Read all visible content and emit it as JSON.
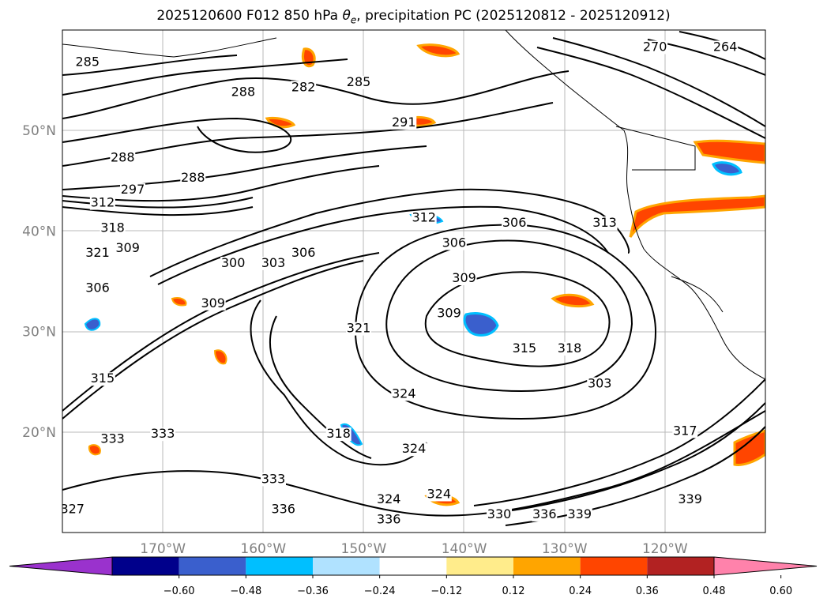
{
  "title": "2025120600 F012 850 hPa θe, precipitation PC (2025120812 - 2025120912)",
  "title_parts": {
    "prefix": "2025120600 F012 850 hPa ",
    "symbol": "θ",
    "subscript": "e",
    "suffix": ", precipitation PC (2025120812 - 2025120912)"
  },
  "map": {
    "lon_range": [
      -180,
      -110
    ],
    "lat_range": [
      10,
      60
    ],
    "grid_lines": true,
    "lat_ticks": [
      {
        "lat": 50,
        "label": "50°N"
      },
      {
        "lat": 40,
        "label": "40°N"
      },
      {
        "lat": 30,
        "label": "30°N"
      },
      {
        "lat": 20,
        "label": "20°N"
      }
    ],
    "lon_ticks": [
      {
        "lon": -170,
        "label": "170°W"
      },
      {
        "lon": -160,
        "label": "160°W"
      },
      {
        "lon": -150,
        "label": "150°W"
      },
      {
        "lon": -140,
        "label": "140°W"
      },
      {
        "lon": -130,
        "label": "130°W"
      },
      {
        "lon": -120,
        "label": "120°W"
      }
    ]
  },
  "contour_labels": [
    {
      "text": "285",
      "lon": -177.5,
      "lat": 56.5
    },
    {
      "text": "282",
      "lon": -156,
      "lat": 54
    },
    {
      "text": "285",
      "lon": -150.5,
      "lat": 54.5
    },
    {
      "text": "288",
      "lon": -162,
      "lat": 53.5
    },
    {
      "text": "291",
      "lon": -146,
      "lat": 50.5
    },
    {
      "text": "270",
      "lon": -121,
      "lat": 58
    },
    {
      "text": "264",
      "lon": -114,
      "lat": 58
    },
    {
      "text": "288",
      "lon": -174,
      "lat": 47
    },
    {
      "text": "288",
      "lon": -167,
      "lat": 45
    },
    {
      "text": "297",
      "lon": -173,
      "lat": 43.8
    },
    {
      "text": "312",
      "lon": -176,
      "lat": 42.5
    },
    {
      "text": "318",
      "lon": -175,
      "lat": 40
    },
    {
      "text": "321",
      "lon": -176.5,
      "lat": 37.5
    },
    {
      "text": "309",
      "lon": -173.5,
      "lat": 38
    },
    {
      "text": "306",
      "lon": -176.5,
      "lat": 34
    },
    {
      "text": "312",
      "lon": -144,
      "lat": 41
    },
    {
      "text": "306",
      "lon": -135,
      "lat": 40.5
    },
    {
      "text": "313",
      "lon": -126,
      "lat": 40.5
    },
    {
      "text": "306",
      "lon": -141,
      "lat": 38.5
    },
    {
      "text": "300",
      "lon": -163,
      "lat": 36.5
    },
    {
      "text": "303",
      "lon": -159,
      "lat": 36.5
    },
    {
      "text": "306",
      "lon": -156,
      "lat": 37.5
    },
    {
      "text": "309",
      "lon": -140,
      "lat": 35
    },
    {
      "text": "309",
      "lon": -165,
      "lat": 32.5
    },
    {
      "text": "309",
      "lon": -141.5,
      "lat": 31.5
    },
    {
      "text": "321",
      "lon": -150.5,
      "lat": 30
    },
    {
      "text": "315",
      "lon": -134,
      "lat": 28
    },
    {
      "text": "318",
      "lon": -129.5,
      "lat": 28
    },
    {
      "text": "315",
      "lon": -176,
      "lat": 25
    },
    {
      "text": "303",
      "lon": -126.5,
      "lat": 24.5
    },
    {
      "text": "324",
      "lon": -146,
      "lat": 23.5
    },
    {
      "text": "333",
      "lon": -175,
      "lat": 19
    },
    {
      "text": "333",
      "lon": -170,
      "lat": 19.5
    },
    {
      "text": "318",
      "lon": -152.5,
      "lat": 19.5
    },
    {
      "text": "324",
      "lon": -145,
      "lat": 18
    },
    {
      "text": "317",
      "lon": -118,
      "lat": 19.8
    },
    {
      "text": "333",
      "lon": -159,
      "lat": 15
    },
    {
      "text": "336",
      "lon": -158,
      "lat": 12
    },
    {
      "text": "324",
      "lon": -147.5,
      "lat": 13
    },
    {
      "text": "324",
      "lon": -142.5,
      "lat": 13.5
    },
    {
      "text": "336",
      "lon": -147.5,
      "lat": 11
    },
    {
      "text": "330",
      "lon": -136.5,
      "lat": 11.5
    },
    {
      "text": "336",
      "lon": -132,
      "lat": 11.5
    },
    {
      "text": "339",
      "lon": -128.5,
      "lat": 11.5
    },
    {
      "text": "339",
      "lon": -117.5,
      "lat": 13
    },
    {
      "text": "327",
      "lon": -179,
      "lat": 12
    }
  ],
  "colorbar": {
    "ticks": [
      "−0.60",
      "−0.48",
      "−0.36",
      "−0.24",
      "−0.12",
      "0.12",
      "0.24",
      "0.36",
      "0.48",
      "0.60"
    ],
    "colors": [
      "#9a32cd",
      "#00008b",
      "#3a5fcd",
      "#00bfff",
      "#b0e2ff",
      "#ffffff",
      "#ffec8b",
      "#ffa500",
      "#ff4500",
      "#b22222",
      "#ff82ab"
    ]
  }
}
